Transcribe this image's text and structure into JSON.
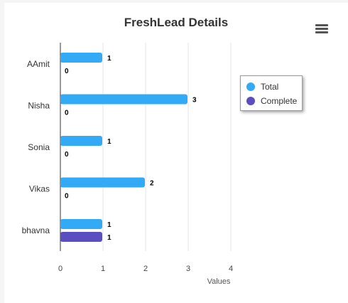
{
  "chart_data": {
    "type": "bar",
    "orientation": "horizontal",
    "title": "FreshLead Details",
    "xlabel": "Values",
    "ylabel": "",
    "categories": [
      "AAmit",
      "Nisha",
      "Sonia",
      "Vikas",
      "bhavna"
    ],
    "series": [
      {
        "name": "Total",
        "values": [
          1,
          3,
          1,
          2,
          1
        ],
        "color": "#33aaf5"
      },
      {
        "name": "Complete",
        "values": [
          0,
          0,
          0,
          0,
          1
        ],
        "color": "#5a4ec0"
      }
    ],
    "xlim": [
      0,
      4
    ],
    "xticks": [
      "0",
      "1",
      "2",
      "3",
      "4"
    ],
    "grid": "vertical",
    "legend_position": "right",
    "data_labels": true
  },
  "icons": {
    "menu": "hamburger-menu-icon"
  }
}
